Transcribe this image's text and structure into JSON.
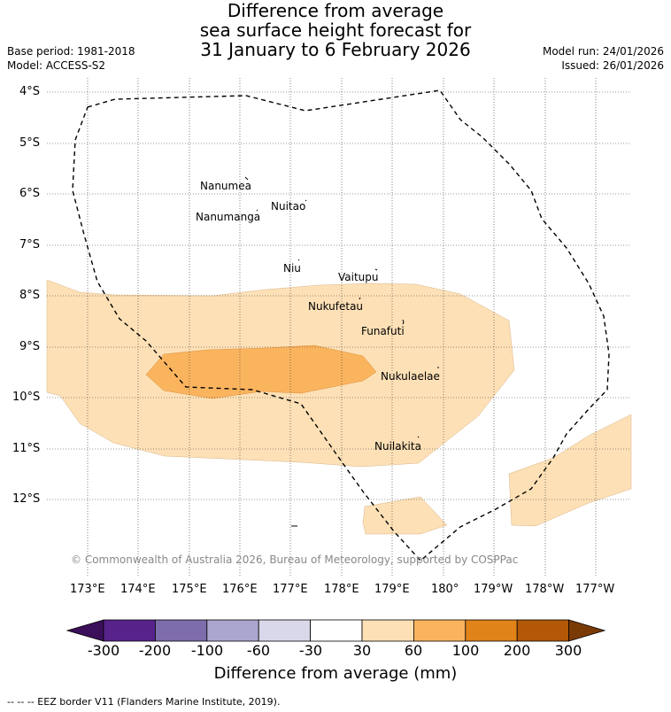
{
  "title": {
    "line1": "Difference from average",
    "line2": "sea surface height forecast for",
    "line3": "31 January to 6 February 2026"
  },
  "info": {
    "base_period": "Base period: 1981-2018",
    "model": "Model: ACCESS-S2",
    "model_run": "Model run: 24/01/2026",
    "issued": "Issued: 26/01/2026"
  },
  "lat_ticks": [
    "4°S",
    "5°S",
    "6°S",
    "7°S",
    "8°S",
    "9°S",
    "10°S",
    "11°S",
    "12°S"
  ],
  "lon_ticks": [
    "173°E",
    "174°E",
    "175°E",
    "176°E",
    "177°E",
    "178°E",
    "179°E",
    "180°",
    "179°W",
    "178°W",
    "177°W"
  ],
  "islands": [
    "Nanumea",
    "Nuitao",
    "Nanumanga",
    "Niu",
    "Vaitupu",
    "Nukufetau",
    "Funafuti",
    "Nukulaelae",
    "Nuilakita"
  ],
  "copyright": "© Commonwealth of Australia 2026, Bureau of Meteorology, supported by COSPPac",
  "colorbar": {
    "labels": [
      "-300",
      "-200",
      "-100",
      "-60",
      "-30",
      "30",
      "60",
      "100",
      "200",
      "300"
    ],
    "colors": [
      "#3b0f5a",
      "#57238b",
      "#7e6dac",
      "#aba6cf",
      "#d9d8ea",
      "#ffffff",
      "#fde0b6",
      "#fbb45e",
      "#e08318",
      "#b25806",
      "#7a3a06"
    ],
    "title": "Difference from average (mm)"
  },
  "footnote": "-- -- -- EEZ border V11 (Flanders Marine Institute, 2019)."
}
